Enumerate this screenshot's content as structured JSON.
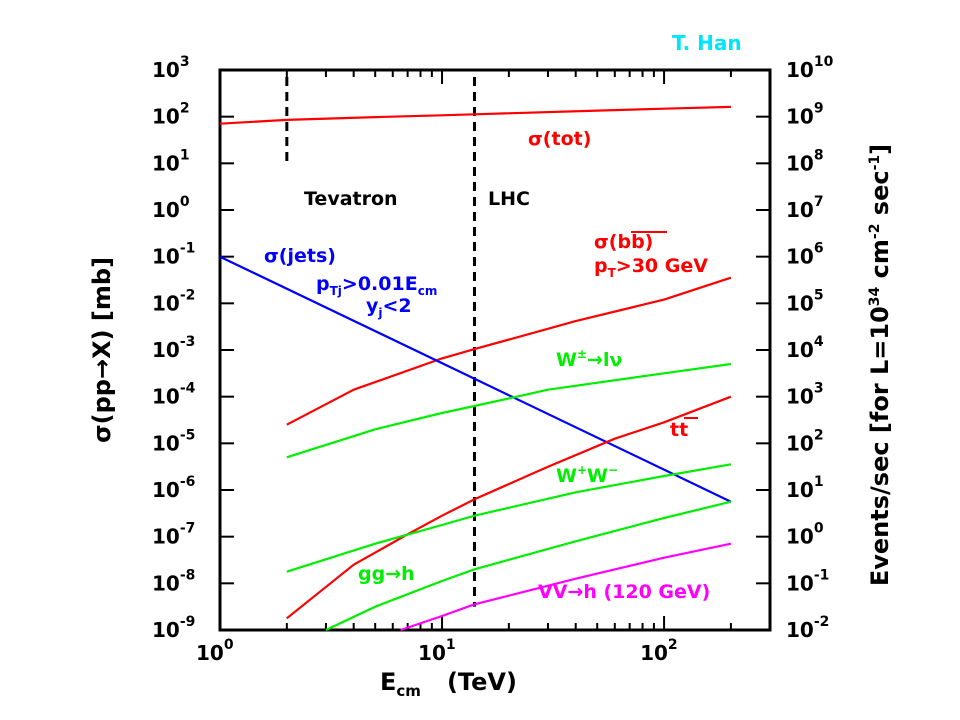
{
  "chart_data": {
    "type": "line",
    "credit": "T. Han",
    "credit_color": "#00e5ff",
    "xlabel": {
      "main": "E",
      "sub": "cm",
      "unit": "(TeV)"
    },
    "ylabel_left": "σ(pp→X)  [mb]",
    "ylabel_right": "Events/sec  [for L=10   cm   sec  ]",
    "ylabel_right_parts": {
      "prefix": "Events/sec  [for L=10",
      "exp1": "34",
      "mid": " cm",
      "exp2": "-2",
      "mid2": " sec",
      "exp3": "-1",
      "suffix": "]"
    },
    "x_scale": "log",
    "xlim": [
      1,
      300
    ],
    "x_ticks": [
      {
        "value": 1,
        "base": "10",
        "exp": "0"
      },
      {
        "value": 10,
        "base": "10",
        "exp": "1"
      },
      {
        "value": 100,
        "base": "10",
        "exp": "2"
      }
    ],
    "y_scale": "log",
    "ylim_left_exponent": [
      -9,
      3
    ],
    "y_ticks_left": [
      {
        "exp": "3"
      },
      {
        "exp": "2"
      },
      {
        "exp": "1"
      },
      {
        "exp": "0"
      },
      {
        "exp": "-1"
      },
      {
        "exp": "-2"
      },
      {
        "exp": "-3"
      },
      {
        "exp": "-4"
      },
      {
        "exp": "-5"
      },
      {
        "exp": "-6"
      },
      {
        "exp": "-7"
      },
      {
        "exp": "-8"
      },
      {
        "exp": "-9"
      }
    ],
    "y_ticks_right": [
      {
        "exp": "10"
      },
      {
        "exp": "9"
      },
      {
        "exp": "8"
      },
      {
        "exp": "7"
      },
      {
        "exp": "6"
      },
      {
        "exp": "5"
      },
      {
        "exp": "4"
      },
      {
        "exp": "3"
      },
      {
        "exp": "2"
      },
      {
        "exp": "1"
      },
      {
        "exp": "0"
      },
      {
        "exp": "-1"
      },
      {
        "exp": "-2"
      }
    ],
    "colliders": [
      {
        "name": "Tevatron",
        "x": 2,
        "y_top_exp": 1.0,
        "y_bottom_exp": 2.85
      },
      {
        "name": "LHC",
        "x": 14,
        "y_top_exp": -8.5,
        "y_bottom_exp": 2.85
      }
    ],
    "series": [
      {
        "key": "tot",
        "color": "#ff0000",
        "log10_y": [
          [
            1,
            1.85
          ],
          [
            2,
            1.93
          ],
          [
            5,
            1.99
          ],
          [
            10,
            2.03
          ],
          [
            14,
            2.05
          ],
          [
            50,
            2.13
          ],
          [
            100,
            2.17
          ],
          [
            200,
            2.21
          ]
        ]
      },
      {
        "key": "bb",
        "color": "#ff0000",
        "log10_y": [
          [
            2,
            -4.6
          ],
          [
            4,
            -3.85
          ],
          [
            10,
            -3.18
          ],
          [
            14,
            -2.98
          ],
          [
            40,
            -2.38
          ],
          [
            100,
            -1.92
          ],
          [
            200,
            -1.45
          ]
        ]
      },
      {
        "key": "jets",
        "color": "#0000ff",
        "log10_y": [
          [
            1,
            -1.0
          ],
          [
            200,
            -6.25
          ]
        ]
      },
      {
        "key": "W",
        "color": "#00ee00",
        "log10_y": [
          [
            2,
            -5.3
          ],
          [
            5,
            -4.7
          ],
          [
            10,
            -4.35
          ],
          [
            14,
            -4.2
          ],
          [
            30,
            -3.85
          ],
          [
            100,
            -3.5
          ],
          [
            200,
            -3.3
          ]
        ]
      },
      {
        "key": "tt",
        "color": "#ff0000",
        "log10_y": [
          [
            2,
            -8.75
          ],
          [
            4,
            -7.6
          ],
          [
            7,
            -6.95
          ],
          [
            10,
            -6.55
          ],
          [
            14,
            -6.2
          ],
          [
            30,
            -5.5
          ],
          [
            60,
            -4.9
          ],
          [
            100,
            -4.55
          ],
          [
            200,
            -4.0
          ]
        ]
      },
      {
        "key": "WW",
        "color": "#00ee00",
        "log10_y": [
          [
            2,
            -7.75
          ],
          [
            5,
            -7.15
          ],
          [
            10,
            -6.75
          ],
          [
            14,
            -6.55
          ],
          [
            40,
            -6.05
          ],
          [
            100,
            -5.7
          ],
          [
            200,
            -5.45
          ]
        ]
      },
      {
        "key": "gg",
        "color": "#00ee00",
        "log10_y": [
          [
            3,
            -9.0
          ],
          [
            5,
            -8.5
          ],
          [
            10,
            -7.95
          ],
          [
            14,
            -7.7
          ],
          [
            40,
            -7.1
          ],
          [
            100,
            -6.6
          ],
          [
            200,
            -6.25
          ]
        ]
      },
      {
        "key": "vv",
        "color": "#ff00ff",
        "log10_y": [
          [
            6.5,
            -9.0
          ],
          [
            10,
            -8.7
          ],
          [
            14,
            -8.45
          ],
          [
            40,
            -7.9
          ],
          [
            100,
            -7.45
          ],
          [
            200,
            -7.15
          ]
        ]
      }
    ],
    "labels": {
      "tot": {
        "text": "σ(tot)",
        "color": "#ff0000"
      },
      "jets": {
        "text": "σ(jets)",
        "color": "#0000ff"
      },
      "jets_cut1": {
        "pre": "p",
        "sub": "Tj",
        "post": ">0.01E",
        "sub2": "cm",
        "color": "#0000ff"
      },
      "jets_cut2": {
        "pre": "y",
        "sub": "j",
        "post": "<2",
        "color": "#0000ff"
      },
      "bb": {
        "text": "σ(bb)",
        "color": "#ff0000"
      },
      "bb_cut": {
        "pre": "p",
        "sub": "T",
        "post": ">30 GeV",
        "color": "#ff0000"
      },
      "W": {
        "pre": "W",
        "sup": "±",
        "post": "→lν",
        "color": "#00ee00"
      },
      "tt": {
        "text": "tt",
        "color": "#ff0000"
      },
      "WW": {
        "pre": "W",
        "sup": "+",
        "mid": "W",
        "sup2": "−",
        "color": "#00ee00"
      },
      "gg": {
        "text": "gg→h",
        "color": "#00ee00"
      },
      "vv": {
        "text": "VV→h (120 GeV)",
        "color": "#ff00ff"
      }
    }
  }
}
